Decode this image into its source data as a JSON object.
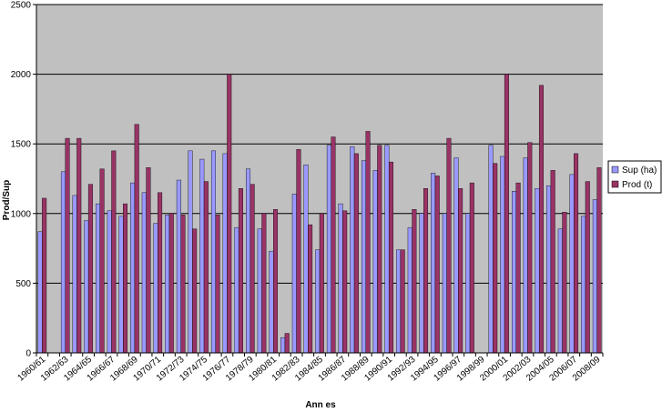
{
  "chart_data": {
    "type": "bar",
    "title": "",
    "xlabel": "Ann es",
    "ylabel": "Prod/Sup",
    "ylim": [
      0,
      2500
    ],
    "yticks": [
      0,
      500,
      1000,
      1500,
      2000,
      2500
    ],
    "grid": true,
    "legend_position": "right",
    "colors": {
      "plot_background": "#c0c0c0",
      "sup": "#9999ff",
      "prod": "#993366",
      "gridline": "#000000"
    },
    "categories": [
      "1960/61",
      "1961/62",
      "1962/63",
      "1963/64",
      "1964/65",
      "1965/66",
      "1966/67",
      "1967/68",
      "1968/69",
      "1969/70",
      "1970/71",
      "1971/72",
      "1972/73",
      "1973/74",
      "1974/75",
      "1975/76",
      "1976/77",
      "1977/78",
      "1978/79",
      "1979/80",
      "1980/81",
      "1981/82",
      "1982/83",
      "1983/84",
      "1984/85",
      "1985/86",
      "1986/87",
      "1987/88",
      "1988/89",
      "1989/90",
      "1990/91",
      "1991/92",
      "1992/93",
      "1993/94",
      "1994/95",
      "1995/96",
      "1996/97",
      "1997/98",
      "1998/99",
      "1999/00",
      "2000/01",
      "2001/02",
      "2002/03",
      "2003/04",
      "2004/05",
      "2005/06",
      "2006/07",
      "2007/08",
      "2008/09"
    ],
    "visible_tick_labels": [
      "1960/61",
      "1962/63",
      "1964/65",
      "1966/67",
      "1968/69",
      "1970/71",
      "1972/73",
      "1974/75",
      "1976/77",
      "1978/79",
      "1980/81",
      "1982/83",
      "1984/85",
      "1986/87",
      "1988/89",
      "1990/91",
      "1992/93",
      "1994/95",
      "1996/97",
      "1998/99",
      "2000/01",
      "2002/03",
      "2004/05",
      "2006/07",
      "2008/09"
    ],
    "series": [
      {
        "name": "Sup (ha)",
        "values": [
          870,
          0,
          1300,
          1130,
          950,
          1070,
          1020,
          980,
          1220,
          1150,
          930,
          990,
          1240,
          1450,
          1390,
          1450,
          1430,
          900,
          1320,
          890,
          730,
          110,
          1140,
          1350,
          740,
          1490,
          1070,
          1480,
          1380,
          1310,
          1490,
          740,
          900,
          1000,
          1290,
          1000,
          1400,
          1000,
          0,
          1490,
          1410,
          1160,
          1400,
          1180,
          1200,
          890,
          1280,
          980,
          1100
        ]
      },
      {
        "name": "Prod (t)",
        "values": [
          1110,
          0,
          1540,
          1540,
          1210,
          1320,
          1450,
          1070,
          1640,
          1330,
          1150,
          1000,
          990,
          890,
          1230,
          990,
          2000,
          1180,
          1210,
          1000,
          1030,
          140,
          1460,
          920,
          1000,
          1550,
          1020,
          1430,
          1590,
          1490,
          1370,
          740,
          1030,
          1180,
          1270,
          1540,
          1180,
          1220,
          0,
          1360,
          2000,
          1220,
          1510,
          1920,
          1310,
          1010,
          1430,
          1230,
          1330
        ]
      }
    ]
  }
}
